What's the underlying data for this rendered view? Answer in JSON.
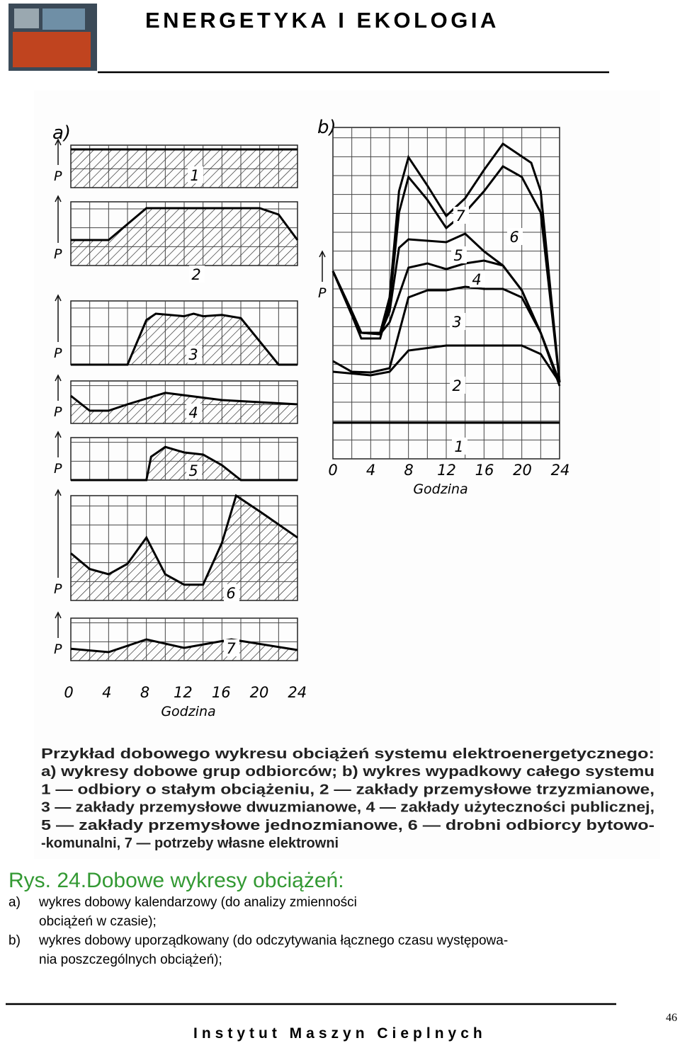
{
  "header": {
    "title": "ENERGETYKA I EKOLOGIA"
  },
  "figure": {
    "panel_a": {
      "label": "a)",
      "axis_symbol": "P",
      "curve_labels": [
        "1",
        "2",
        "3",
        "4",
        "5",
        "6",
        "7"
      ],
      "x_ticks": [
        "0",
        "4",
        "8",
        "12",
        "16",
        "20",
        "24"
      ],
      "x_label": "Godzina"
    },
    "panel_b": {
      "label": "b)",
      "axis_symbol": "P",
      "curve_labels": [
        "1",
        "2",
        "3",
        "4",
        "5",
        "6",
        "7"
      ],
      "x_ticks": [
        "0",
        "4",
        "8",
        "12",
        "16",
        "20",
        "24"
      ],
      "x_label": "Godzina"
    },
    "caption_lines": [
      "Przykład dobowego wykresu obciążeń systemu elektroenergetycznego:",
      "a) wykresy dobowe grup odbiorców; b) wykres wypadkowy całego systemu",
      "1 — odbiory o stałym obciążeniu, 2 — zakłady przemysłowe trzyzmianowe,",
      "3 — zakłady przemysłowe dwuzmianowe, 4 — zakłady użyteczności publicznej,",
      "5 — zakłady przemysłowe jednozmianowe, 6 — drobni odbiorcy bytowo-",
      "-komunalni, 7 — potrzeby własne elektrowni"
    ]
  },
  "caption": {
    "title": "Rys. 24.Dobowe wykresy obciążeń:",
    "items": [
      {
        "marker": "a)",
        "lines": [
          "wykres dobowy kalendarzowy (do analizy zmienności",
          "obciążeń w czasie);"
        ]
      },
      {
        "marker": "b)",
        "lines": [
          "wykres dobowy uporządkowany (do odczytywania łącznego czasu występowa-",
          "nia poszczególnych obciążeń);"
        ]
      }
    ]
  },
  "footer": {
    "institute": "Instytut Maszyn Cieplnych",
    "page": "46"
  }
}
